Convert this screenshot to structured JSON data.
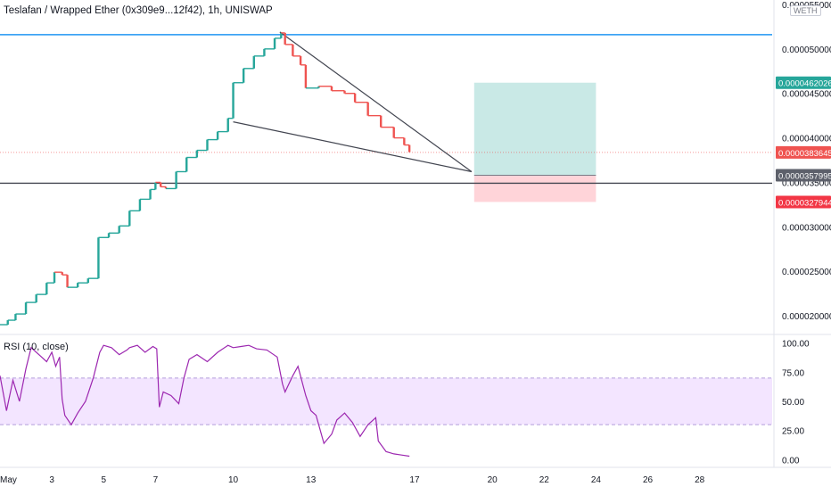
{
  "header": {
    "title": "Teslafan / Wrapped Ether (0x309e9...12f42), 1h, UNISWAP",
    "quote_chip": "WETH"
  },
  "rsi": {
    "label": "RSI (10, close)"
  },
  "colors": {
    "up": "#26a69a",
    "down": "#ef5350",
    "resistance": "#2196f3",
    "support": "#434651",
    "wedge": "#434651",
    "target_zone": "#b2dfdb",
    "stop_zone": "#ffcdd2",
    "rsi_line": "#9c27b0",
    "rsi_band": "#f3e5ff"
  },
  "chart_data": [
    {
      "type": "candlestick",
      "title": "Teslafan / Wrapped Ether (0x309e9...12f42), 1h, UNISWAP",
      "xlabel": "",
      "ylabel": "",
      "x_ticks": [
        "May",
        "3",
        "5",
        "7",
        "10",
        "13",
        "17",
        "20",
        "22",
        "24",
        "26",
        "28"
      ],
      "x_tick_days": [
        1,
        3,
        5,
        7,
        10,
        13,
        17,
        20,
        22,
        24,
        26,
        28
      ],
      "xlim_days": [
        1.0,
        30.8
      ],
      "y_ticks": [
        "0.0000200000",
        "0.0000250000",
        "0.0000300000",
        "0.0000350000",
        "0.0000400000",
        "0.0000450000",
        "0.0000500000",
        "0.0000550000"
      ],
      "y_tick_values": [
        2e-05,
        2.5e-05,
        3e-05,
        3.5e-05,
        4e-05,
        4.5e-05,
        5e-05,
        5.5e-05
      ],
      "ylim": [
        1.82e-05,
        5.55e-05
      ],
      "series": [
        {
          "data": [
            [
              1.0,
              1.9e-05
            ],
            [
              1.3,
              1.95e-05
            ],
            [
              1.6,
              2.02e-05
            ],
            [
              2.0,
              2.15e-05
            ],
            [
              2.4,
              2.24e-05
            ],
            [
              2.8,
              2.37e-05
            ],
            [
              3.1,
              2.49e-05
            ],
            [
              3.4,
              2.46e-05
            ],
            [
              3.6,
              2.32e-05
            ],
            [
              4.0,
              2.37e-05
            ],
            [
              4.4,
              2.42e-05
            ],
            [
              4.8,
              2.88e-05
            ],
            [
              5.2,
              2.93e-05
            ],
            [
              5.6,
              3.01e-05
            ],
            [
              6.0,
              3.18e-05
            ],
            [
              6.4,
              3.31e-05
            ],
            [
              6.8,
              3.42e-05
            ],
            [
              7.0,
              3.5e-05
            ],
            [
              7.2,
              3.45e-05
            ],
            [
              7.4,
              3.43e-05
            ],
            [
              7.8,
              3.62e-05
            ],
            [
              8.2,
              3.78e-05
            ],
            [
              8.6,
              3.86e-05
            ],
            [
              9.0,
              3.98e-05
            ],
            [
              9.4,
              4.07e-05
            ],
            [
              9.8,
              4.22e-05
            ],
            [
              10.0,
              4.62e-05
            ],
            [
              10.4,
              4.78e-05
            ],
            [
              10.8,
              4.92e-05
            ],
            [
              11.2,
              5e-05
            ],
            [
              11.6,
              5.12e-05
            ],
            [
              11.85,
              5.18e-05
            ],
            [
              12.0,
              5.05e-05
            ],
            [
              12.3,
              4.92e-05
            ],
            [
              12.6,
              4.82e-05
            ],
            [
              12.8,
              4.56e-05
            ],
            [
              13.3,
              4.58e-05
            ],
            [
              13.8,
              4.53e-05
            ],
            [
              14.3,
              4.5e-05
            ],
            [
              14.7,
              4.4e-05
            ],
            [
              15.2,
              4.25e-05
            ],
            [
              15.7,
              4.12e-05
            ],
            [
              16.2,
              4e-05
            ],
            [
              16.6,
              3.92e-05
            ],
            [
              16.8,
              3.84e-05
            ]
          ]
        }
      ],
      "annotations": [
        {
          "kind": "hline",
          "name": "resistance",
          "y": 5.16e-05
        },
        {
          "kind": "hline",
          "name": "support",
          "y": 3.49e-05
        },
        {
          "kind": "hline",
          "name": "current-price-line",
          "y": 3.83645e-05
        },
        {
          "kind": "trendline",
          "name": "wedge-upper",
          "from": [
            11.8,
            5.19e-05
          ],
          "to": [
            19.2,
            3.62e-05
          ]
        },
        {
          "kind": "trendline",
          "name": "wedge-lower",
          "from": [
            10.0,
            4.18e-05
          ],
          "to": [
            19.2,
            3.62e-05
          ]
        },
        {
          "kind": "position",
          "name": "long-position",
          "x_from": 19.3,
          "x_to": 24.0,
          "entry": 3.57995e-05,
          "target": 4.62026e-05,
          "stop": 3.27944e-05
        }
      ],
      "price_labels": [
        {
          "name": "target",
          "value": "0.0000462026",
          "y": 4.62026e-05,
          "color": "#26a69a"
        },
        {
          "name": "current",
          "value": "0.0000383645",
          "y": 3.83645e-05,
          "color": "#ef5350"
        },
        {
          "name": "entry",
          "value": "0.0000357995",
          "y": 3.57995e-05,
          "color": "#5d606b"
        },
        {
          "name": "stop",
          "value": "0.0000327944",
          "y": 3.27944e-05,
          "color": "#f23645"
        }
      ]
    },
    {
      "type": "line",
      "title": "RSI (10, close)",
      "y_ticks": [
        "100.00",
        "75.00",
        "50.00",
        "25.00",
        "0.00"
      ],
      "y_tick_values": [
        100,
        75,
        50,
        25,
        0
      ],
      "ylim": [
        -5,
        105
      ],
      "band": [
        30,
        70
      ],
      "series": [
        {
          "x": [
            1.0,
            1.25,
            1.5,
            1.75,
            2.0,
            2.2,
            2.5,
            2.8,
            3.0,
            3.15,
            3.3,
            3.4,
            3.5,
            3.75,
            4.0,
            4.3,
            4.6,
            4.85,
            5.0,
            5.3,
            5.6,
            5.9,
            6.0,
            6.3,
            6.6,
            6.9,
            7.05,
            7.15,
            7.3,
            7.6,
            7.9,
            8.1,
            8.3,
            8.6,
            9.0,
            9.4,
            9.8,
            10.0,
            10.3,
            10.6,
            10.9,
            11.3,
            11.7,
            11.9,
            12.0,
            12.3,
            12.5,
            12.8,
            13.0,
            13.2,
            13.5,
            13.8,
            14.0,
            14.3,
            14.6,
            14.9,
            15.2,
            15.5,
            15.6,
            15.9,
            16.2,
            16.5,
            16.8
          ],
          "y": [
            72,
            42,
            68,
            50,
            78,
            96,
            90,
            84,
            92,
            80,
            88,
            52,
            38,
            30,
            40,
            50,
            70,
            92,
            98,
            96,
            90,
            94,
            96,
            98,
            92,
            97,
            95,
            45,
            58,
            55,
            48,
            70,
            86,
            90,
            84,
            92,
            98,
            96,
            97,
            98,
            95,
            94,
            88,
            65,
            58,
            72,
            80,
            55,
            42,
            38,
            14,
            22,
            34,
            40,
            32,
            20,
            30,
            36,
            16,
            7,
            5,
            4,
            3
          ]
        }
      ]
    }
  ]
}
